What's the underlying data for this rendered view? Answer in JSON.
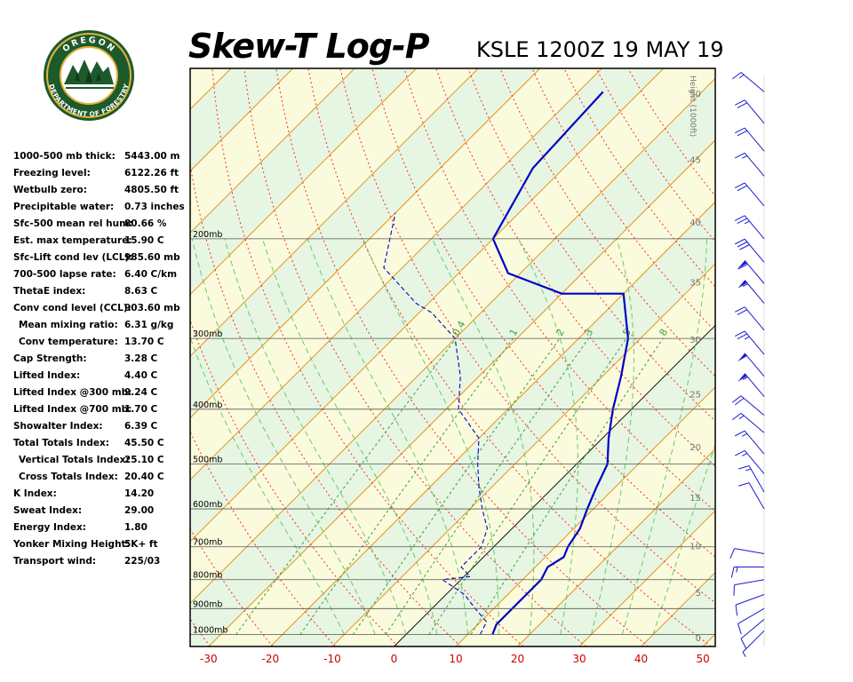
{
  "logo": {
    "top_text": "OREGON",
    "ring_text": "DEPARTMENT OF FORESTRY",
    "ring_color": "#1c5a2c",
    "gold_color": "#e3b23c"
  },
  "header": {
    "title": "Skew-T Log-P",
    "subtitle": "KSLE 1200Z 19 MAY 19"
  },
  "indices": [
    {
      "label": "1000-500 mb thick:",
      "value": "5443.00 m",
      "indent": false
    },
    {
      "label": "Freezing level:",
      "value": "6122.26 ft",
      "indent": false
    },
    {
      "label": "Wetbulb zero:",
      "value": "4805.50 ft",
      "indent": false
    },
    {
      "label": "Precipitable water:",
      "value": "0.73 inches",
      "indent": false
    },
    {
      "label": "Sfc-500 mean rel hum:",
      "value": "80.66 %",
      "indent": false
    },
    {
      "label": "Est. max temperature:",
      "value": "15.90 C",
      "indent": false
    },
    {
      "label": "Sfc-Lift cond lev (LCL):",
      "value": "985.60 mb",
      "indent": false
    },
    {
      "label": "700-500 lapse rate:",
      "value": "6.40 C/km",
      "indent": false
    },
    {
      "label": "ThetaE index:",
      "value": "8.63 C",
      "indent": false
    },
    {
      "label": "Conv cond level (CCL):",
      "value": "903.60 mb",
      "indent": false
    },
    {
      "label": "Mean mixing ratio:",
      "value": "6.31 g/kg",
      "indent": true
    },
    {
      "label": "Conv temperature:",
      "value": "13.70 C",
      "indent": true
    },
    {
      "label": "Cap Strength:",
      "value": "3.28 C",
      "indent": false
    },
    {
      "label": "Lifted Index:",
      "value": "4.40 C",
      "indent": false
    },
    {
      "label": "Lifted Index @300 mb:",
      "value": "9.24 C",
      "indent": false
    },
    {
      "label": "Lifted Index @700 mb:",
      "value": "1.70 C",
      "indent": false
    },
    {
      "label": "Showalter Index:",
      "value": "6.39 C",
      "indent": false
    },
    {
      "label": "Total Totals Index:",
      "value": "45.50 C",
      "indent": false
    },
    {
      "label": "Vertical Totals Index:",
      "value": "25.10 C",
      "indent": true
    },
    {
      "label": "Cross Totals Index:",
      "value": "20.40 C",
      "indent": true
    },
    {
      "label": "K Index:",
      "value": "14.20",
      "indent": false
    },
    {
      "label": "Sweat Index:",
      "value": "29.00",
      "indent": false
    },
    {
      "label": "Energy Index:",
      "value": "1.80",
      "indent": false
    },
    {
      "label": "Yonker Mixing Height:",
      "value": "5K+ ft",
      "indent": false
    },
    {
      "label": "Transport wind:",
      "value": "225/03",
      "indent": false
    }
  ],
  "chart_data": {
    "type": "line",
    "title": "Skew-T Log-P",
    "subtitle": "KSLE 1200Z 19 MAY 19",
    "x_ticks": [
      -30,
      -20,
      -10,
      0,
      10,
      20,
      30,
      40,
      50
    ],
    "x_range": [
      -33,
      52
    ],
    "pressure_levels": [
      200,
      300,
      400,
      500,
      600,
      700,
      800,
      900,
      1000
    ],
    "pressure_labels": [
      "200mb",
      "300mb",
      "400mb",
      "500mb",
      "600mb",
      "700mb",
      "800mb",
      "900mb",
      "1000mb"
    ],
    "pressure_range": [
      100,
      1050
    ],
    "height_axis_label": "Height (1000ft)",
    "height_ticks": [
      0,
      5,
      10,
      15,
      20,
      25,
      30,
      35,
      40,
      45,
      50
    ],
    "mixing_ratio_ticks": [
      "0.4",
      "1",
      "2",
      "3",
      "5",
      "8"
    ],
    "series": [
      {
        "name": "Temperature",
        "color": "#0000c8",
        "points": [
          [
            14,
            1000
          ],
          [
            13,
            960
          ],
          [
            13,
            900
          ],
          [
            13,
            850
          ],
          [
            13,
            800
          ],
          [
            12,
            760
          ],
          [
            13,
            730
          ],
          [
            12,
            700
          ],
          [
            11,
            650
          ],
          [
            9,
            600
          ],
          [
            7,
            550
          ],
          [
            5,
            500
          ],
          [
            1,
            450
          ],
          [
            -3,
            400
          ],
          [
            -7,
            350
          ],
          [
            -12,
            300
          ],
          [
            -20,
            250
          ],
          [
            -30,
            250
          ],
          [
            -42,
            230
          ],
          [
            -50,
            200
          ],
          [
            -55,
            150
          ],
          [
            -56,
            110
          ]
        ]
      },
      {
        "name": "Dewpoint",
        "color": "#0000c8",
        "points": [
          [
            12,
            1000
          ],
          [
            11,
            950
          ],
          [
            7,
            900
          ],
          [
            3,
            850
          ],
          [
            -3,
            800
          ],
          [
            1,
            790
          ],
          [
            -2,
            760
          ],
          [
            -2,
            700
          ],
          [
            -4,
            650
          ],
          [
            -8,
            600
          ],
          [
            -12,
            550
          ],
          [
            -16,
            500
          ],
          [
            -20,
            450
          ],
          [
            -28,
            400
          ],
          [
            -33,
            350
          ],
          [
            -40,
            300
          ],
          [
            -48,
            270
          ],
          [
            -52,
            260
          ],
          [
            -63,
            225
          ],
          [
            -70,
            180
          ]
        ]
      }
    ],
    "winds": [
      {
        "p": 985,
        "dir": 225,
        "spd": 5
      },
      {
        "p": 940,
        "dir": 230,
        "spd": 10
      },
      {
        "p": 900,
        "dir": 240,
        "spd": 10
      },
      {
        "p": 850,
        "dir": 250,
        "spd": 10
      },
      {
        "p": 800,
        "dir": 260,
        "spd": 10
      },
      {
        "p": 760,
        "dir": 270,
        "spd": 15
      },
      {
        "p": 720,
        "dir": 280,
        "spd": 10
      },
      {
        "p": 600,
        "dir": 330,
        "spd": 10
      },
      {
        "p": 560,
        "dir": 330,
        "spd": 15
      },
      {
        "p": 520,
        "dir": 320,
        "spd": 15
      },
      {
        "p": 480,
        "dir": 320,
        "spd": 15
      },
      {
        "p": 440,
        "dir": 310,
        "spd": 15
      },
      {
        "p": 410,
        "dir": 310,
        "spd": 20
      },
      {
        "p": 380,
        "dir": 320,
        "spd": 55
      },
      {
        "p": 350,
        "dir": 320,
        "spd": 50
      },
      {
        "p": 320,
        "dir": 320,
        "spd": 25
      },
      {
        "p": 290,
        "dir": 320,
        "spd": 20
      },
      {
        "p": 260,
        "dir": 320,
        "spd": 55
      },
      {
        "p": 240,
        "dir": 320,
        "spd": 60
      },
      {
        "p": 220,
        "dir": 320,
        "spd": 30
      },
      {
        "p": 200,
        "dir": 320,
        "spd": 25
      },
      {
        "p": 175,
        "dir": 320,
        "spd": 20
      },
      {
        "p": 155,
        "dir": 320,
        "spd": 15
      },
      {
        "p": 140,
        "dir": 320,
        "spd": 20
      },
      {
        "p": 125,
        "dir": 320,
        "spd": 20
      },
      {
        "p": 110,
        "dir": 310,
        "spd": 15
      }
    ],
    "grid": true
  },
  "colors": {
    "isotherm": "#e8921c",
    "isotherm_zero": "#111111",
    "dry_adiabat": "#ff2a2a",
    "moist_adiabat": "#6cc86c",
    "isobar": "#555555",
    "band_green": "#e6f6e2",
    "band_yellow": "#fafbdc",
    "axis_label": "#cc0000",
    "height_label": "#777777",
    "wind_barb": "#1c1ccc"
  }
}
